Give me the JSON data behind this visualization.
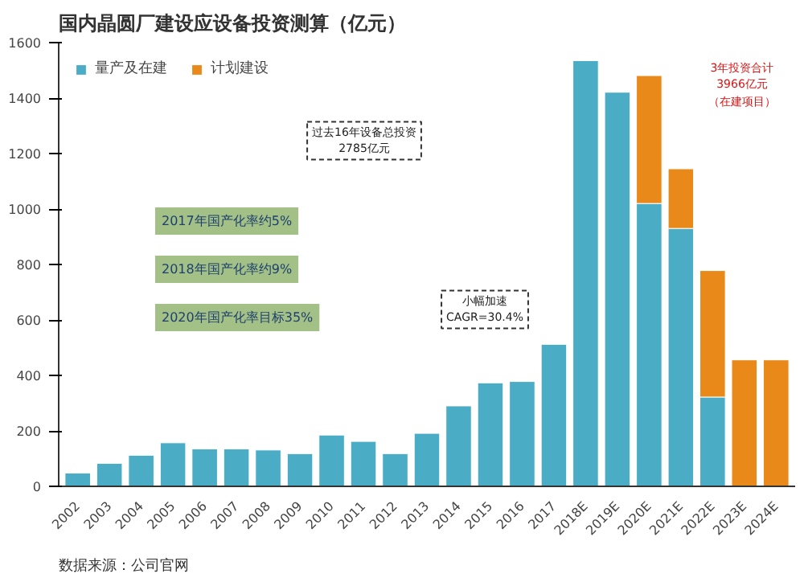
{
  "chart_data": {
    "type": "bar",
    "title": "国内晶圆厂建设应设备投资测算（亿元）",
    "stacked": true,
    "categories": [
      "2002",
      "2003",
      "2004",
      "2005",
      "2006",
      "2007",
      "2008",
      "2009",
      "2010",
      "2011",
      "2012",
      "2013",
      "2014",
      "2015",
      "2016",
      "2017",
      "2018E",
      "2019E",
      "2020E",
      "2021E",
      "2022E",
      "2023E",
      "2024E"
    ],
    "series": [
      {
        "name": "量产及在建",
        "color": "#4bacc6",
        "values": [
          48,
          83,
          112,
          157,
          135,
          135,
          131,
          118,
          185,
          162,
          118,
          191,
          290,
          373,
          378,
          512,
          1535,
          1421,
          1020,
          930,
          322,
          null,
          null
        ]
      },
      {
        "name": "计划建设",
        "color": "#e8891a",
        "values": [
          null,
          null,
          null,
          null,
          null,
          null,
          null,
          null,
          null,
          null,
          null,
          null,
          null,
          null,
          null,
          null,
          null,
          null,
          461,
          215,
          456,
          456,
          456
        ]
      }
    ],
    "ylim": [
      0,
      1600
    ],
    "yticks": [
      0,
      200,
      400,
      600,
      800,
      1000,
      1200,
      1400,
      1600
    ],
    "grid": false,
    "legend": "top left",
    "annotations": [
      "过去16年设备总投资\n2785亿元",
      "3年投资合计\n3966亿元",
      "（在建项目）",
      "2017年国产化率约5%",
      "2018年国产化率约9%",
      "2020年国产化率目标35%",
      "小幅加速\nCAGR=30.4%",
      "数据来源：公司官网"
    ]
  }
}
